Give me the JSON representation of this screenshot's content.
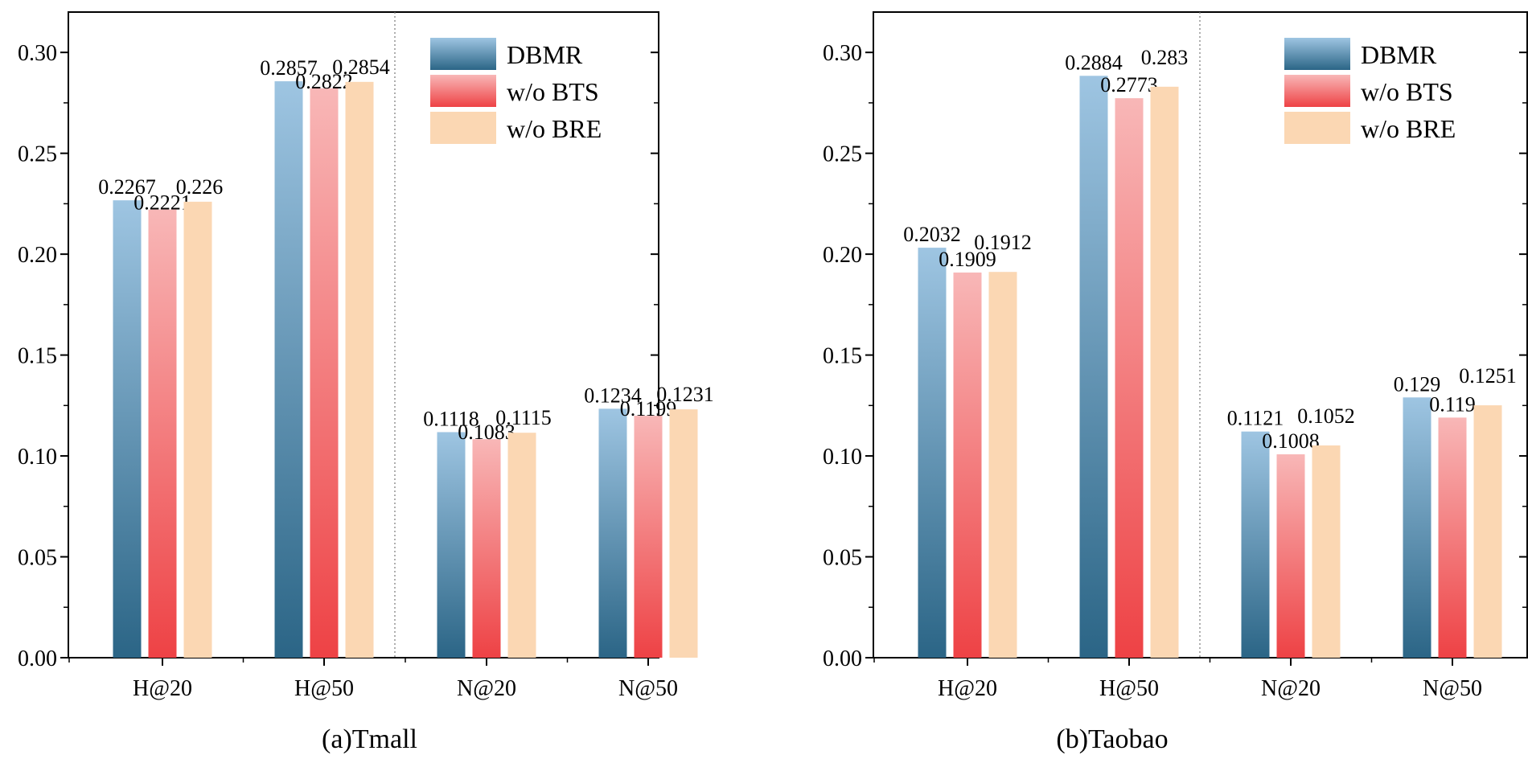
{
  "colors": {
    "dbmr_top": "#9ec5e2",
    "dbmr_bottom": "#2b6586",
    "bts_top": "#f8b7b7",
    "bts_bottom": "#ee4245",
    "bre_top": "#fbd7b3",
    "bre_bottom": "#fbd7b3",
    "axis": "#000000"
  },
  "legend": [
    "DBMR",
    "w/o BTS",
    "w/o BRE"
  ],
  "chart_data": [
    {
      "type": "bar",
      "title": "(a)Tmall",
      "categories": [
        "H@20",
        "H@50",
        "N@20",
        "N@50"
      ],
      "ylim": [
        0,
        0.32
      ],
      "yticks": [
        "0.00",
        "0.05",
        "0.10",
        "0.15",
        "0.20",
        "0.25",
        "0.30"
      ],
      "series": [
        {
          "name": "DBMR",
          "values": [
            0.2267,
            0.2857,
            0.1118,
            0.1234
          ],
          "labels": [
            "0.2267",
            "0.2857",
            "0.1118",
            "0.1234"
          ]
        },
        {
          "name": "w/o BTS",
          "values": [
            0.2221,
            0.2822,
            0.1083,
            0.1199
          ],
          "labels": [
            "0.2221",
            "0.2822",
            "0.1083",
            "0.1199"
          ]
        },
        {
          "name": "w/o BRE",
          "values": [
            0.226,
            0.2854,
            0.1115,
            0.1231
          ],
          "labels": [
            "0.226",
            "0.2854",
            "0.1115",
            "0.1231"
          ]
        }
      ]
    },
    {
      "type": "bar",
      "title": "(b)Taobao",
      "categories": [
        "H@20",
        "H@50",
        "N@20",
        "N@50"
      ],
      "ylim": [
        0,
        0.32
      ],
      "yticks": [
        "0.00",
        "0.05",
        "0.10",
        "0.15",
        "0.20",
        "0.25",
        "0.30"
      ],
      "series": [
        {
          "name": "DBMR",
          "values": [
            0.2032,
            0.2884,
            0.1121,
            0.129
          ],
          "labels": [
            "0.2032",
            "0.2884",
            "0.1121",
            "0.129"
          ]
        },
        {
          "name": "w/o BTS",
          "values": [
            0.1909,
            0.2773,
            0.1008,
            0.119
          ],
          "labels": [
            "0.1909",
            "0.2773",
            "0.1008",
            "0.119"
          ]
        },
        {
          "name": "w/o BRE",
          "values": [
            0.1912,
            0.283,
            0.1052,
            0.1251
          ],
          "labels": [
            "0.1912",
            "0.283",
            "0.1052",
            "0.1251"
          ]
        }
      ]
    }
  ]
}
